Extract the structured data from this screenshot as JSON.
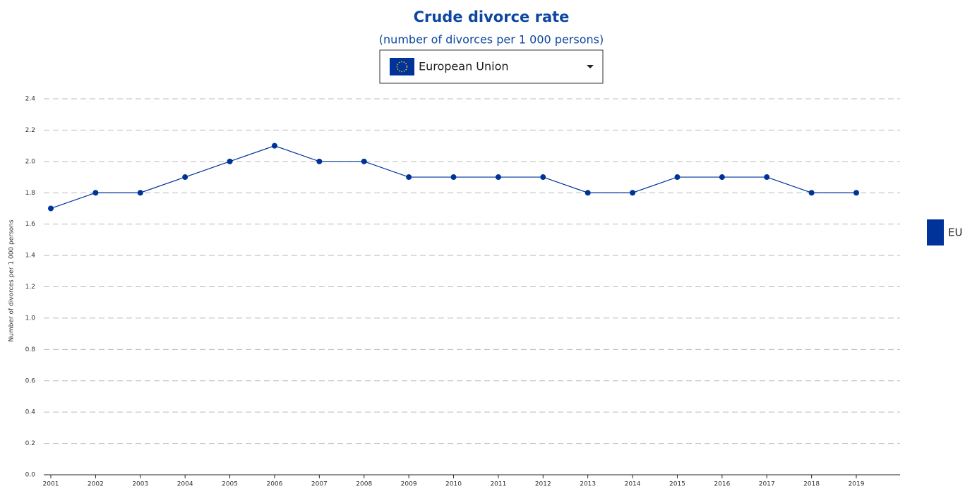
{
  "chart_data": {
    "type": "line",
    "title": "Crude divorce rate",
    "subtitle": "(number of divorces per 1 000 persons)",
    "selector": "European Union",
    "y_label": "Number of divorces per 1 000 persons",
    "categories": [
      "2001",
      "2002",
      "2003",
      "2004",
      "2005",
      "2006",
      "2007",
      "2008",
      "2009",
      "2010",
      "2011",
      "2012",
      "2013",
      "2014",
      "2015",
      "2016",
      "2017",
      "2018",
      "2019"
    ],
    "series": [
      {
        "name": "EU",
        "color": "#003399",
        "values": [
          1.7,
          1.8,
          1.8,
          1.9,
          2.0,
          2.1,
          2.0,
          2.0,
          1.9,
          1.9,
          1.9,
          1.9,
          1.8,
          1.8,
          1.9,
          1.9,
          1.9,
          1.8,
          1.8
        ]
      }
    ],
    "ylim": [
      0,
      2.4
    ],
    "yticks": [
      {
        "value": 0,
        "label": "0.0"
      },
      0.2,
      0.4,
      0.6,
      0.8,
      {
        "value": 1,
        "label": "1.0"
      },
      1.2,
      1.4,
      1.6,
      1.8,
      {
        "value": 2,
        "label": "2.0"
      },
      2.2,
      2.4
    ],
    "grid": true,
    "legend": "right"
  }
}
